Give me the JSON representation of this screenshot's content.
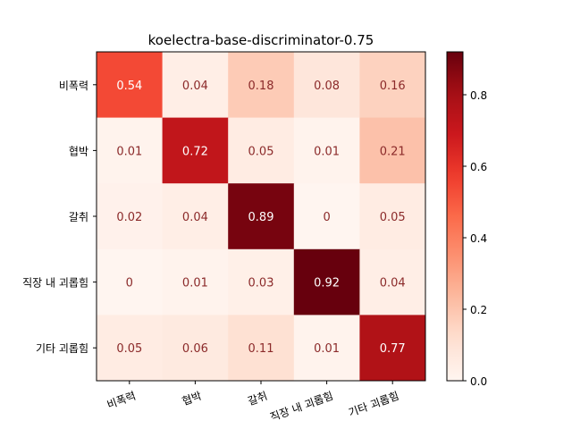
{
  "chart_data": {
    "type": "heatmap",
    "title": "koelectra-base-discriminator-0.75",
    "rows": [
      "비폭력",
      "협박",
      "갈취",
      "직장 내 괴롭힘",
      "기타 괴롭힘"
    ],
    "columns": [
      "비폭력",
      "협박",
      "갈취",
      "직장 내 괴롭힘",
      "기타 괴롭힘"
    ],
    "values": [
      [
        0.54,
        0.04,
        0.18,
        0.08,
        0.16
      ],
      [
        0.01,
        0.72,
        0.05,
        0.01,
        0.21
      ],
      [
        0.02,
        0.04,
        0.89,
        0,
        0.05
      ],
      [
        0,
        0.01,
        0.03,
        0.92,
        0.04
      ],
      [
        0.05,
        0.06,
        0.11,
        0.01,
        0.77
      ]
    ],
    "value_labels": [
      [
        "0.54",
        "0.04",
        "0.18",
        "0.08",
        "0.16"
      ],
      [
        "0.01",
        "0.72",
        "0.05",
        "0.01",
        "0.21"
      ],
      [
        "0.02",
        "0.04",
        "0.89",
        "0",
        "0.05"
      ],
      [
        "0",
        "0.01",
        "0.03",
        "0.92",
        "0.04"
      ],
      [
        "0.05",
        "0.06",
        "0.11",
        "0.01",
        "0.77"
      ]
    ],
    "colormap": "Reds",
    "colorbar": {
      "range": [
        0,
        0.92
      ],
      "ticks": [
        0.0,
        0.2,
        0.4,
        0.6,
        0.8
      ],
      "tick_labels": [
        "0.0",
        "0.2",
        "0.4",
        "0.6",
        "0.8"
      ]
    }
  }
}
